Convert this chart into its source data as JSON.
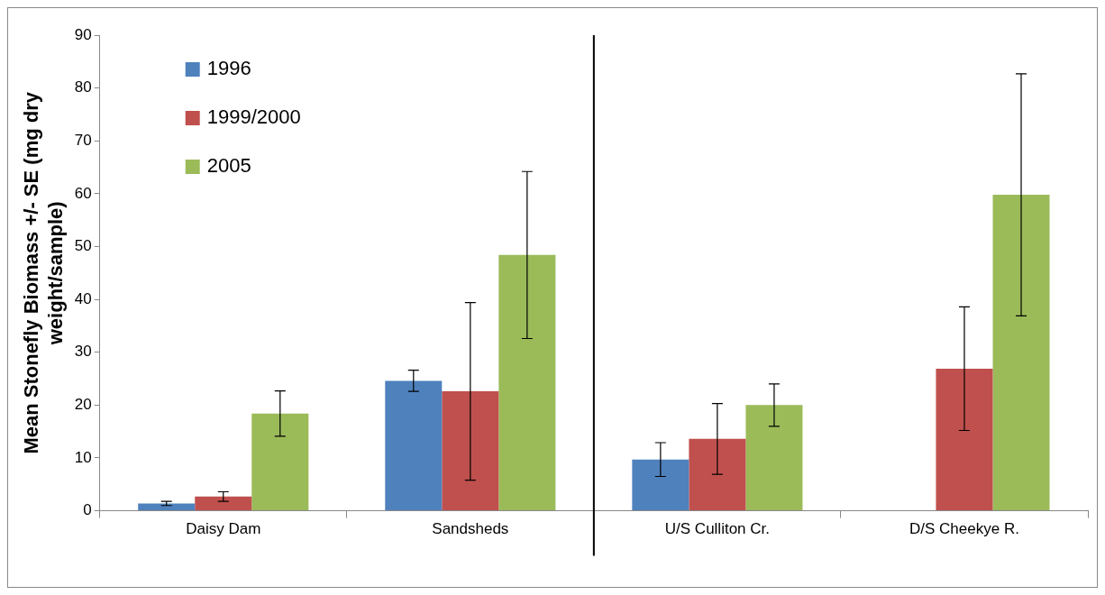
{
  "chart_data": {
    "type": "bar",
    "ylabel": "Mean Stonefly Biomass +/- SE (mg dry weight/sample)",
    "categories": [
      "Daisy Dam",
      "Sandsheds",
      "U/S Culliton Cr.",
      "D/S Cheekye R."
    ],
    "series": [
      {
        "name": "1996",
        "color": "#4f81bd",
        "values": [
          1.4,
          24.6,
          9.7,
          null
        ],
        "errors": [
          0.4,
          2.0,
          3.2,
          null
        ]
      },
      {
        "name": "1999/2000",
        "color": "#c0504d",
        "values": [
          2.7,
          22.6,
          13.6,
          26.9
        ],
        "errors": [
          0.9,
          16.8,
          6.7,
          11.7
        ]
      },
      {
        "name": "2005",
        "color": "#9bbb59",
        "values": [
          18.4,
          48.4,
          20.0,
          59.8
        ],
        "errors": [
          4.3,
          15.8,
          4.0,
          22.9
        ]
      }
    ],
    "ylim": [
      0,
      90
    ],
    "yticks": [
      0,
      10,
      20,
      30,
      40,
      50,
      60,
      70,
      80,
      90
    ],
    "grid": false,
    "legend": "top left"
  }
}
